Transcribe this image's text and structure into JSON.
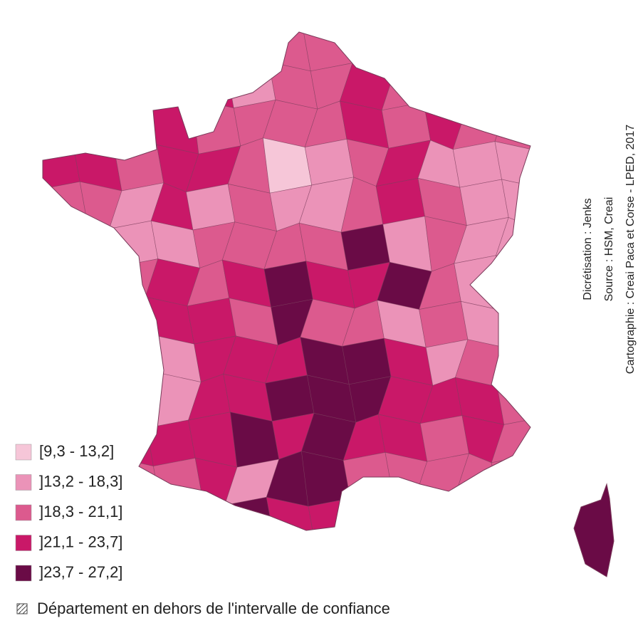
{
  "legend": {
    "items": [
      {
        "label": "[9,3 - 13,2]",
        "color": "#f6c6d8"
      },
      {
        "label": "]13,2 - 18,3]",
        "color": "#eb93b8"
      },
      {
        "label": "]18,3 - 21,1]",
        "color": "#dc5a8e"
      },
      {
        "label": "]21,1 - 23,7]",
        "color": "#c91868"
      },
      {
        "label": "]23,7 - 27,2]",
        "color": "#6a0b46"
      }
    ],
    "note": "Département en dehors de l'intervalle de confiance"
  },
  "credits": [
    "Dicrétisation : Jenks",
    "Source : HSM, Creai",
    "Cartographie : Creai Paca et Corse - LPED, 2017"
  ]
}
